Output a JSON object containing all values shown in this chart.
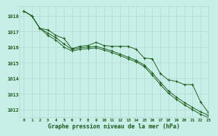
{
  "title": "Graphe pression niveau de la mer (hPa)",
  "background_color": "#c8eee8",
  "grid_color": "#b0d8cc",
  "line_color": "#1a5c1a",
  "xlim": [
    -0.5,
    23
  ],
  "ylim": [
    1011.5,
    1018.6
  ],
  "yticks": [
    1012,
    1013,
    1014,
    1015,
    1016,
    1017,
    1018
  ],
  "xticks": [
    0,
    1,
    2,
    3,
    4,
    5,
    6,
    7,
    8,
    9,
    10,
    11,
    12,
    13,
    14,
    15,
    16,
    17,
    18,
    19,
    20,
    21,
    22,
    23
  ],
  "series1": [
    1018.3,
    1018.0,
    1017.2,
    1017.1,
    1016.75,
    1016.55,
    1015.9,
    1016.05,
    1016.1,
    1016.3,
    1016.1,
    1016.05,
    1016.05,
    1016.05,
    1015.85,
    1015.3,
    1015.25,
    1014.3,
    1013.9,
    1013.8,
    1013.6,
    1013.6,
    1012.5,
    1011.8
  ],
  "series2": [
    1018.3,
    1018.0,
    1017.2,
    1016.9,
    1016.6,
    1016.2,
    1015.85,
    1015.95,
    1016.0,
    1016.05,
    1015.9,
    1015.75,
    1015.55,
    1015.35,
    1015.15,
    1014.85,
    1014.35,
    1013.75,
    1013.2,
    1012.8,
    1012.45,
    1012.15,
    1011.85,
    1011.65
  ],
  "series3": [
    1018.3,
    1018.0,
    1017.2,
    1016.75,
    1016.45,
    1016.0,
    1015.75,
    1015.85,
    1015.9,
    1015.95,
    1015.8,
    1015.65,
    1015.45,
    1015.25,
    1015.05,
    1014.75,
    1014.2,
    1013.6,
    1013.05,
    1012.65,
    1012.3,
    1012.0,
    1011.7,
    1011.5
  ],
  "ytick_labels": [
    "1012",
    "1013",
    "1014",
    "1015",
    "1016",
    "1017",
    "1018"
  ]
}
